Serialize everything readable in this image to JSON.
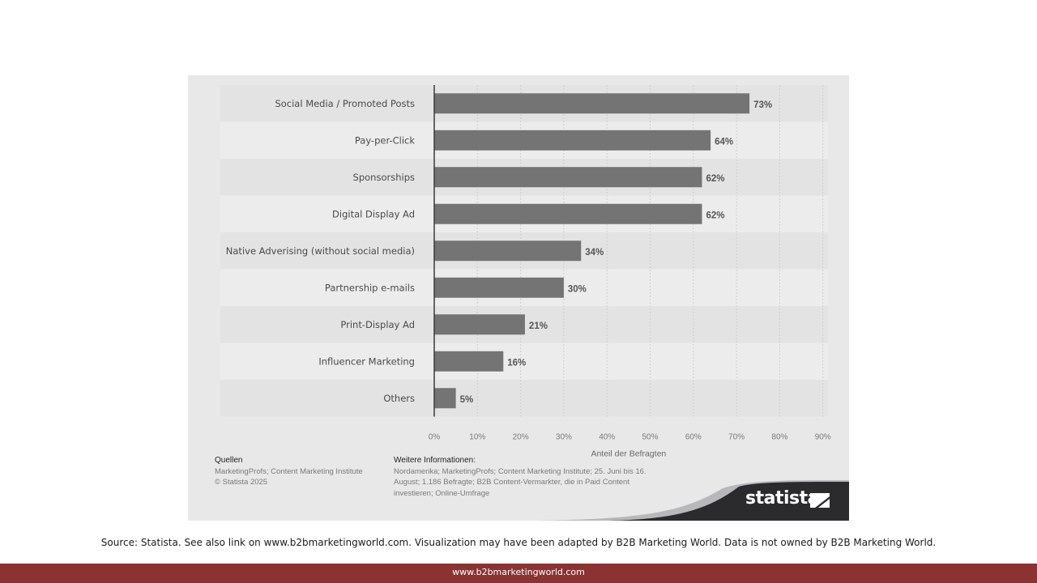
{
  "chart_data": {
    "type": "bar",
    "orientation": "horizontal",
    "categories": [
      "Social Media / Promoted Posts",
      "Pay-per-Click",
      "Sponsorships",
      "Digital Display Ad",
      "Native Adverising (without social media)",
      "Partnership e-mails",
      "Print-Display Ad",
      "Influencer Marketing",
      "Others"
    ],
    "values": [
      73,
      64,
      62,
      62,
      34,
      30,
      21,
      16,
      5
    ],
    "value_labels": [
      "73%",
      "64%",
      "62%",
      "62%",
      "34%",
      "30%",
      "21%",
      "16%",
      "5%"
    ],
    "xlim": [
      0,
      90
    ],
    "xticks": [
      0,
      10,
      20,
      30,
      40,
      50,
      60,
      70,
      80,
      90
    ],
    "xtick_labels": [
      "0%",
      "10%",
      "20%",
      "30%",
      "40%",
      "50%",
      "60%",
      "70%",
      "80%",
      "90%"
    ],
    "xlabel": "Anteil der Befragten",
    "ylabel": "",
    "grid": true,
    "bar_color": "#747474"
  },
  "sources": {
    "heading": "Quellen",
    "line1": "MarketingProfs; Content Marketing Institute",
    "line2": "© Statista 2025"
  },
  "more_info": {
    "heading": "Weitere Informationen:",
    "text": "Nordamerika; MarketingProfs; Content Marketing Institute; 25. Juni bis 16. August; 1.186 Befragte; B2B Content-Vermarkter, die in Paid Content investieren; Online-Umfrage"
  },
  "brand": {
    "name": "statista",
    "band_color": "#2b2b2e"
  },
  "source_line": "Source: Statista. See also link on www.b2bmarketingworld.com. Visualization may have been adapted by B2B Marketing World. Data is not owned by B2B Marketing World.",
  "footer": {
    "url": "www.b2bmarketingworld.com",
    "color": "#8b3232"
  }
}
